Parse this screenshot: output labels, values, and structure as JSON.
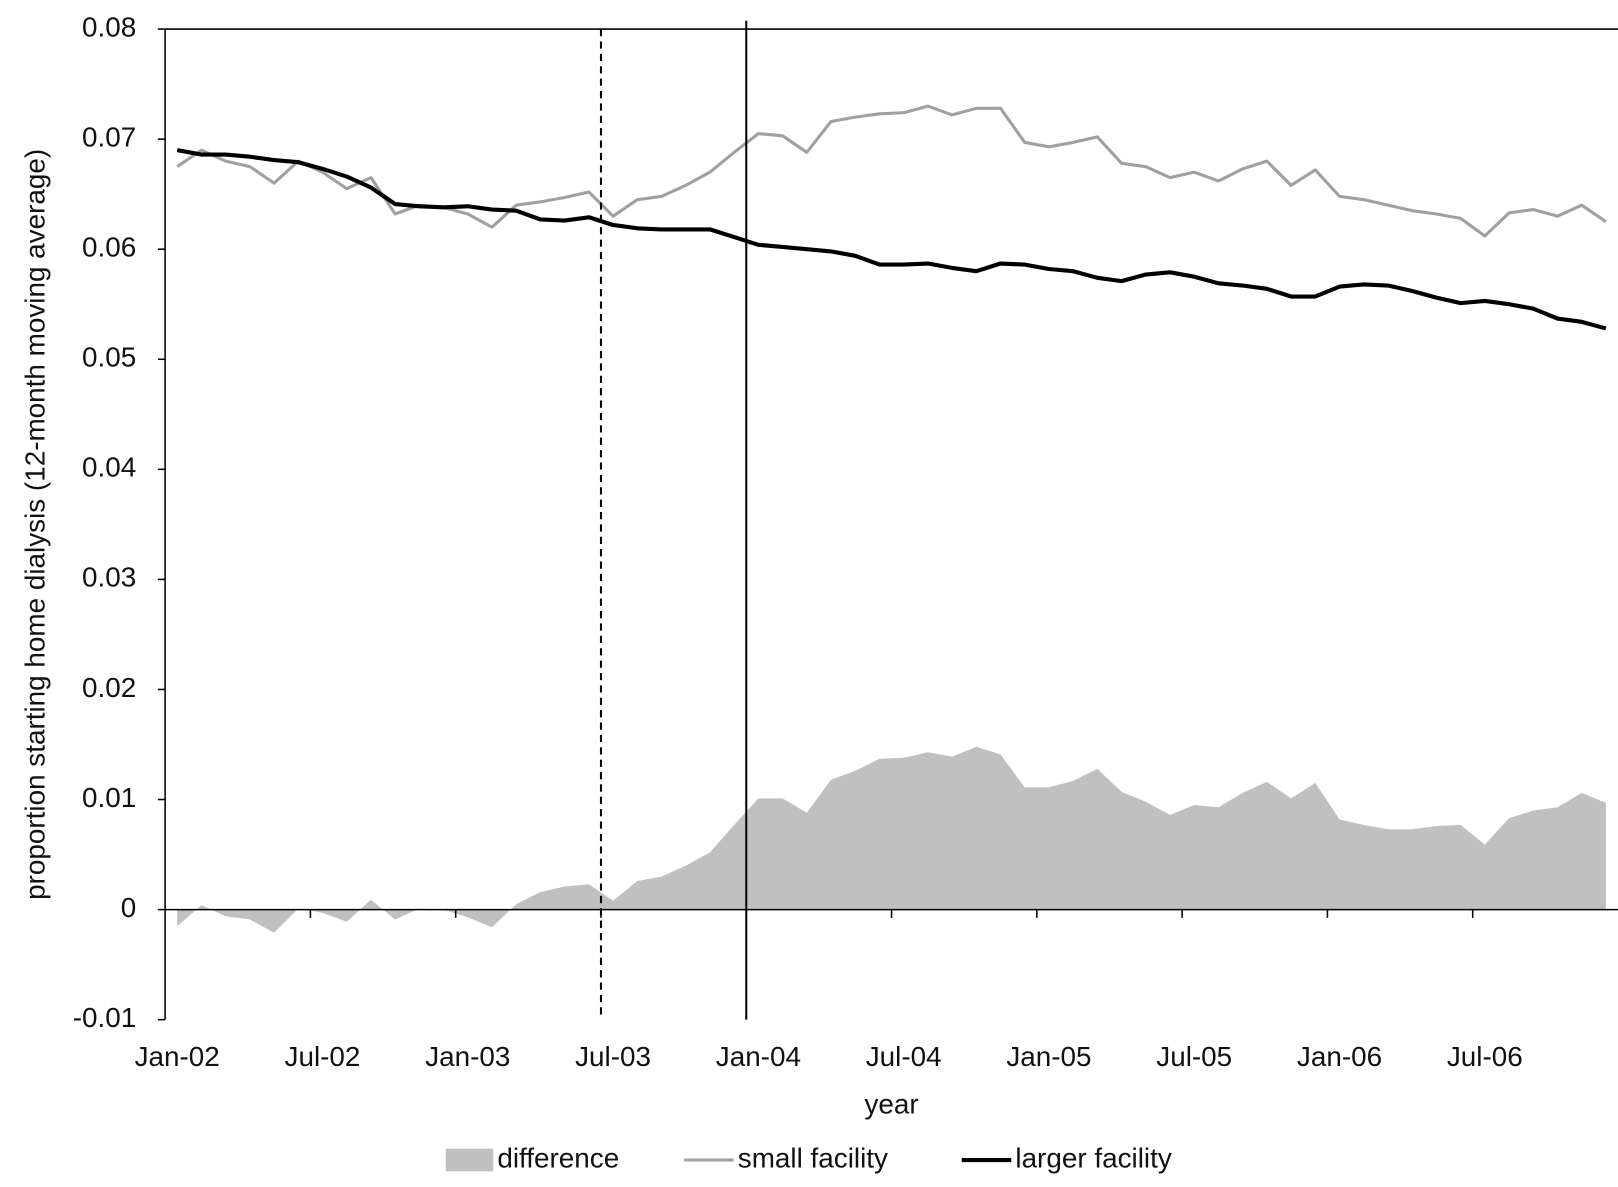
{
  "chart_data": {
    "type": "line",
    "x_label": "year",
    "y_label": "proportion starting home dialysis (12-month moving  average)",
    "categories": [
      "Jan-02",
      null,
      null,
      null,
      null,
      null,
      "Jul-02",
      null,
      null,
      null,
      null,
      null,
      "Jan-03",
      null,
      null,
      null,
      null,
      null,
      "Jul-03",
      null,
      null,
      null,
      null,
      null,
      "Jan-04",
      null,
      null,
      null,
      null,
      null,
      "Jul-04",
      null,
      null,
      null,
      null,
      null,
      "Jan-05",
      null,
      null,
      null,
      null,
      null,
      "Jul-05",
      null,
      null,
      null,
      null,
      null,
      "Jan-06",
      null,
      null,
      null,
      null,
      null,
      "Jul-06",
      null,
      null,
      null,
      null,
      null
    ],
    "series": [
      {
        "name": "difference",
        "kind": "area",
        "color": "#c0c0c0",
        "values": [
          -0.0015,
          0.0004,
          -0.0006,
          -0.0009,
          -0.0021,
          0.0001,
          -0.0003,
          -0.0011,
          0.0009,
          -0.0009,
          0.0001,
          0,
          -0.0007,
          -0.0016,
          0.0005,
          0.0016,
          0.0021,
          0.0023,
          0.0008,
          0.0026,
          0.003,
          0.004,
          0.0052,
          0.0077,
          0.0101,
          0.0101,
          0.0088,
          0.0118,
          0.0126,
          0.0137,
          0.0138,
          0.0143,
          0.0139,
          0.0148,
          0.0141,
          0.0111,
          0.0111,
          0.0117,
          0.0128,
          0.0107,
          0.0098,
          0.0086,
          0.0095,
          0.0093,
          0.0106,
          0.0116,
          0.0101,
          0.0115,
          0.0082,
          0.0077,
          0.0073,
          0.0073,
          0.0076,
          0.0077,
          0.0059,
          0.0083,
          0.009,
          0.0093,
          0.0106,
          0.0097
        ]
      },
      {
        "name": "small facility",
        "kind": "line",
        "color": "#a0a0a0",
        "width": 3,
        "values": [
          0.0675,
          0.069,
          0.068,
          0.0675,
          0.066,
          0.068,
          0.067,
          0.0655,
          0.0665,
          0.0632,
          0.064,
          0.0638,
          0.0632,
          0.062,
          0.064,
          0.0643,
          0.0647,
          0.0652,
          0.063,
          0.0645,
          0.0648,
          0.0658,
          0.067,
          0.0688,
          0.0705,
          0.0703,
          0.0688,
          0.0716,
          0.072,
          0.0723,
          0.0724,
          0.073,
          0.0722,
          0.0728,
          0.0728,
          0.0697,
          0.0693,
          0.0697,
          0.0702,
          0.0678,
          0.0675,
          0.0665,
          0.067,
          0.0662,
          0.0673,
          0.068,
          0.0658,
          0.0672,
          0.0648,
          0.0645,
          0.064,
          0.0635,
          0.0632,
          0.0628,
          0.0612,
          0.0633,
          0.0636,
          0.063,
          0.064,
          0.0625
        ]
      },
      {
        "name": "larger facility",
        "kind": "line",
        "color": "#000000",
        "width": 4,
        "values": [
          0.069,
          0.0686,
          0.0686,
          0.0684,
          0.0681,
          0.0679,
          0.0673,
          0.0666,
          0.0656,
          0.0641,
          0.0639,
          0.0638,
          0.0639,
          0.0636,
          0.0635,
          0.0627,
          0.0626,
          0.0629,
          0.0622,
          0.0619,
          0.0618,
          0.0618,
          0.0618,
          0.0611,
          0.0604,
          0.0602,
          0.06,
          0.0598,
          0.0594,
          0.0586,
          0.0586,
          0.0587,
          0.0583,
          0.058,
          0.0587,
          0.0586,
          0.0582,
          0.058,
          0.0574,
          0.0571,
          0.0577,
          0.0579,
          0.0575,
          0.0569,
          0.0567,
          0.0564,
          0.0557,
          0.0557,
          0.0566,
          0.0568,
          0.0567,
          0.0562,
          0.0556,
          0.0551,
          0.0553,
          0.055,
          0.0546,
          0.0537,
          0.0534,
          0.0528
        ]
      }
    ],
    "reference_lines": [
      {
        "before_index": 18,
        "dash": true
      },
      {
        "before_index": 24,
        "dash": false
      }
    ],
    "ylim": [
      -0.01,
      0.08
    ],
    "yticks": [
      -0.01,
      0,
      0.01,
      0.02,
      0.03,
      0.04,
      0.05,
      0.06,
      0.07,
      0.08
    ],
    "legend": "bottom"
  }
}
